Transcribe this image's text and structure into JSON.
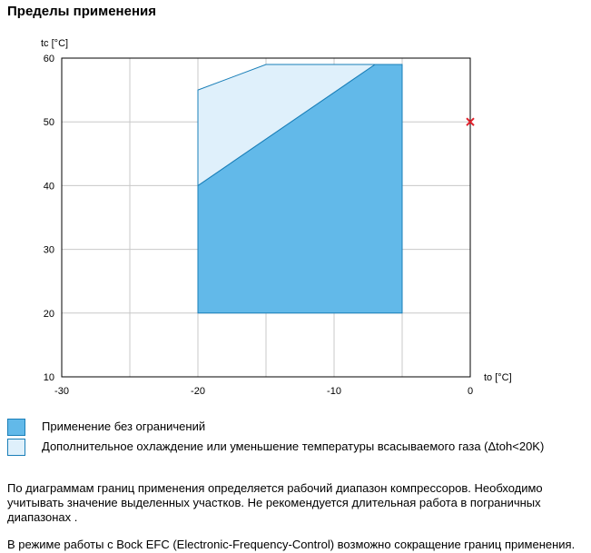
{
  "title": "Пределы применения",
  "chart_data": {
    "type": "area",
    "xlabel": "to [°C]",
    "ylabel": "tc [°C]",
    "xlim": [
      -30,
      0
    ],
    "ylim": [
      10,
      60
    ],
    "x_ticks": [
      -30,
      -20,
      -10,
      0
    ],
    "y_ticks": [
      10,
      20,
      30,
      40,
      50,
      60
    ],
    "grid": true,
    "series": [
      {
        "name": "Применение без ограничений",
        "color": "#62b9e9",
        "polygon": [
          [
            -20,
            20
          ],
          [
            -20,
            40
          ],
          [
            -7,
            59
          ],
          [
            -5,
            59
          ],
          [
            -5,
            20
          ]
        ]
      },
      {
        "name": "Дополнительное охлаждение или уменьшение температуры всасываемого газа (Δtoh<20K)",
        "color": "#dff0fb",
        "polygon": [
          [
            -20,
            40
          ],
          [
            -20,
            55
          ],
          [
            -15,
            59
          ],
          [
            -7,
            59
          ]
        ]
      }
    ],
    "marker": {
      "x": 0,
      "y": 50,
      "symbol": "x",
      "color": "#e0202a"
    }
  },
  "legend": [
    {
      "label": "Применение без ограничений",
      "color": "#62b9e9"
    },
    {
      "label": "Дополнительное охлаждение или уменьшение температуры всасываемого газа (Δtoh<20K)",
      "color": "#dff0fb"
    }
  ],
  "paragraphs": {
    "p1": "По диаграммам границ применения определяется рабочий диапазон компрессоров. Необходимо учитывать значение выделенных участков. Не рекомендуется длительная работа в пограничных диапазонах .",
    "p2": "В режиме работы с Bock EFC (Electronic-Frequency-Control) возможно сокращение границ применения."
  }
}
